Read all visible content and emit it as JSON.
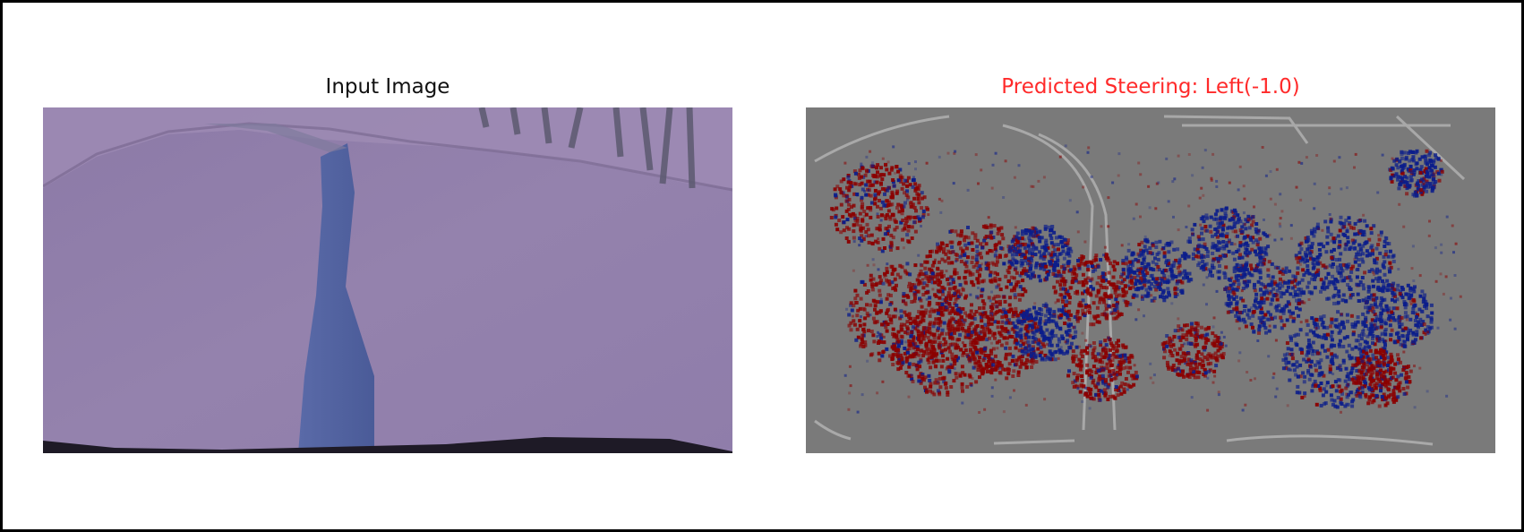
{
  "figure": {
    "input_panel": {
      "title": "Input Image",
      "image_description_icon": "camera-frame-image"
    },
    "saliency_panel": {
      "title": "Predicted Steering: Left(-1.0)",
      "image_description_icon": "saliency-map-image",
      "colors": {
        "positive": "#8b0000",
        "negative": "#0b1d8b",
        "neutral": "#7a7a7a"
      }
    }
  }
}
